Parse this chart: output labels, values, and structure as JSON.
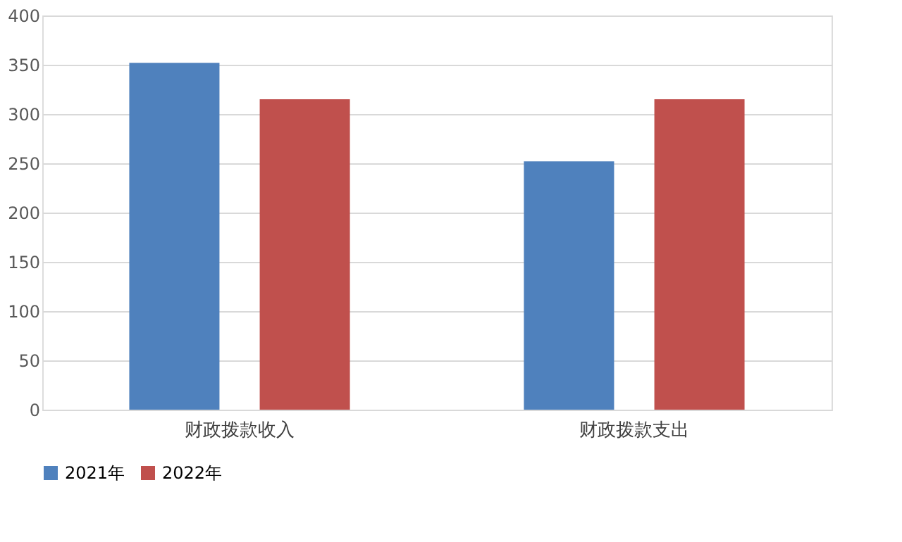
{
  "chart_data": {
    "type": "bar",
    "categories": [
      "财政拨款收入",
      "财政拨款支出"
    ],
    "series": [
      {
        "name": "2021年",
        "color": "#4f81bd",
        "values": [
          352,
          252
        ]
      },
      {
        "name": "2022年",
        "color": "#c0504d",
        "values": [
          315,
          315
        ]
      }
    ],
    "ylim": [
      0,
      400
    ],
    "yticks": [
      0,
      50,
      100,
      150,
      200,
      250,
      300,
      350,
      400
    ],
    "grid": "y",
    "legend": "bottom"
  }
}
